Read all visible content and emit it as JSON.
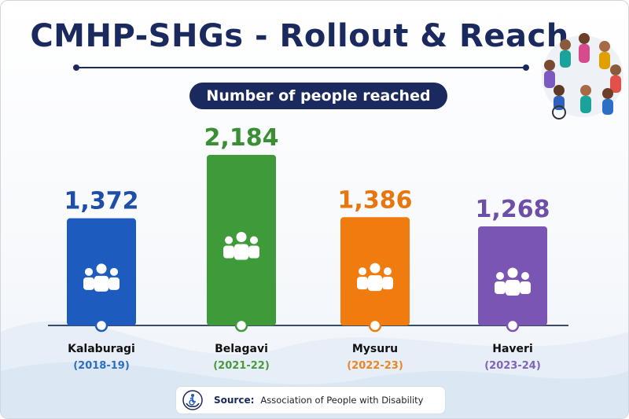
{
  "title": "CMHP-SHGs - Rollout & Reach",
  "subtitle": "Number of people reached",
  "source": {
    "label": "Source:",
    "text": "Association of People with Disability"
  },
  "colors": {
    "navy": "#1b2a5e",
    "axis": "#3a4a6a"
  },
  "chart_data": {
    "type": "bar",
    "title": "CMHP-SHGs - Rollout & Reach",
    "subtitle": "Number of people reached",
    "xlabel": "",
    "ylabel": "",
    "categories": [
      "Kalaburagi",
      "Belagavi",
      "Mysuru",
      "Haveri"
    ],
    "periods": [
      "(2018-19)",
      "(2021-22)",
      "(2022-23)",
      "(2023-24)"
    ],
    "values": [
      1372,
      2184,
      1386,
      1268
    ],
    "value_labels": [
      "1,372",
      "2,184",
      "1,386",
      "1,268"
    ],
    "bar_colors": [
      "#1d5bbf",
      "#3f9a3a",
      "#f07c10",
      "#7a55b3"
    ],
    "label_colors": [
      "#1d4fa8",
      "#3a8f34",
      "#e8760f",
      "#6e4fa8"
    ],
    "period_colors": [
      "#2d6fc4",
      "#4a9a3c",
      "#ef8420",
      "#8163b8"
    ],
    "ylim": [
      0,
      2184
    ],
    "grid": false,
    "legend": "none"
  }
}
